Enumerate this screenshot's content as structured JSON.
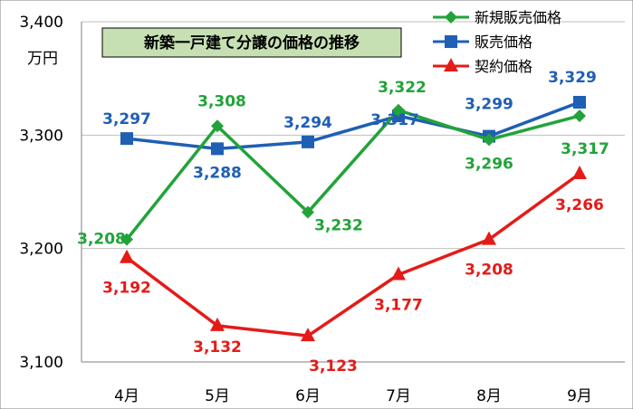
{
  "chart_data": {
    "type": "line",
    "title": "新築一戸建て分譲の価格の推移",
    "unit_label": "万円",
    "categories": [
      "4月",
      "5月",
      "6月",
      "7月",
      "8月",
      "9月"
    ],
    "ylim": [
      3100,
      3400
    ],
    "yticks": [
      3100,
      3200,
      3300,
      3400
    ],
    "ytick_labels": [
      "3,100",
      "3,200",
      "3,300",
      "3,400"
    ],
    "grid": true,
    "legend_position": "top-right",
    "series": [
      {
        "name": "新規販売価格",
        "color": "#22a33a",
        "marker": "diamond",
        "values": [
          3208,
          3308,
          3232,
          3322,
          3296,
          3317
        ],
        "labels": [
          "3,208",
          "3,308",
          "3,232",
          "3,322",
          "3,296",
          "3,317"
        ]
      },
      {
        "name": "販売価格",
        "color": "#1f5fb4",
        "marker": "square",
        "values": [
          3297,
          3288,
          3294,
          3317,
          3299,
          3329
        ],
        "labels": [
          "3,297",
          "3,288",
          "3,294",
          "3,317",
          "3,299",
          "3,329"
        ]
      },
      {
        "name": "契約価格",
        "color": "#e41b17",
        "marker": "triangle",
        "values": [
          3192,
          3132,
          3123,
          3177,
          3208,
          3266
        ],
        "labels": [
          "3,192",
          "3,132",
          "3,123",
          "3,177",
          "3,208",
          "3,266"
        ]
      }
    ],
    "title_box": {
      "fill": "#c6e0b4",
      "stroke": "#000000"
    }
  }
}
